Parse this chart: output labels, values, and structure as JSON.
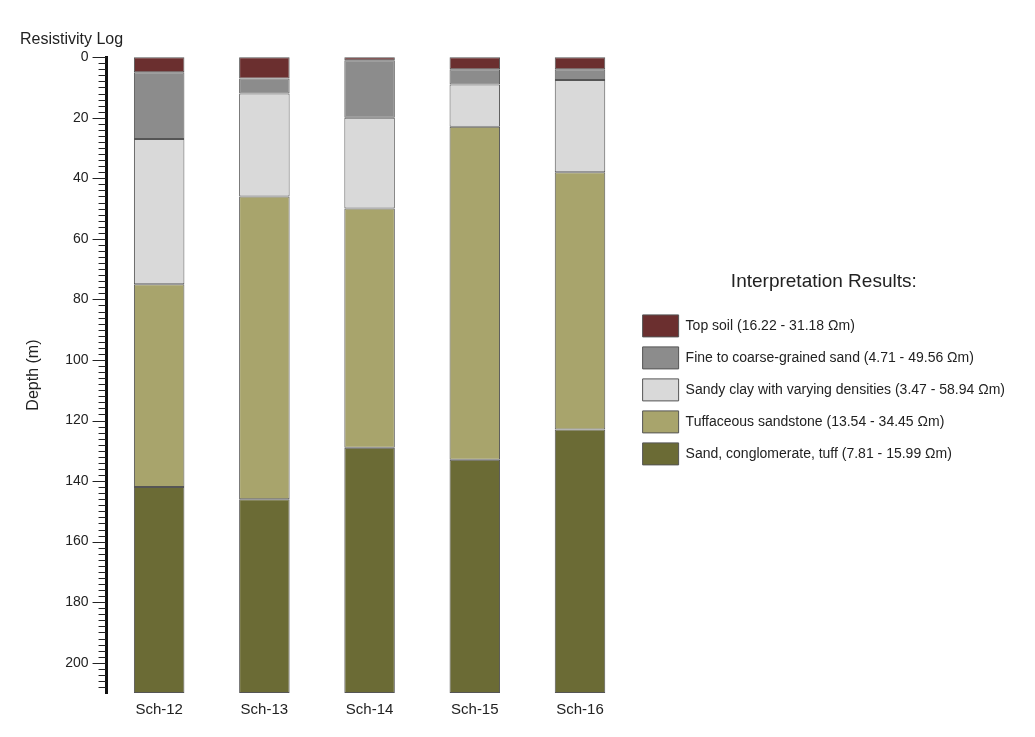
{
  "chart_data": {
    "type": "bar",
    "title": "Resistivity Log",
    "ylabel": "Depth (m)",
    "legend_title": "Interpretation Results:",
    "legend": "right",
    "stacked": true,
    "grid": false,
    "categories": [
      "Sch-12",
      "Sch-13",
      "Sch-14",
      "Sch-15",
      "Sch-16"
    ],
    "series": [
      {
        "name": "Top soil (16.22 - 31.18 Ωm)",
        "color": "#6b2f2f",
        "values": [
          5,
          7,
          1,
          4,
          4
        ]
      },
      {
        "name": "Fine to coarse-grained sand (4.71 - 49.56 Ωm)",
        "color": "#8c8c8c",
        "values": [
          22,
          5,
          19,
          5,
          3.5
        ]
      },
      {
        "name": "Sandy clay with varying densities (3.47 - 58.94 Ωm)",
        "color": "#d9d9d9",
        "values": [
          48,
          34,
          30,
          14,
          30.5
        ]
      },
      {
        "name": "Tuffaceous sandstone (13.54 - 34.45 Ωm)",
        "color": "#a8a46c",
        "values": [
          67,
          100,
          79,
          110,
          85
        ]
      },
      {
        "name": "Sand, conglomerate, tuff (7.81 - 15.99 Ωm)",
        "color": "#6b6b35",
        "values": [
          68,
          64,
          81,
          77,
          87
        ]
      }
    ],
    "ylim": [
      210,
      0
    ],
    "yticks": [
      0,
      {
        "value": 2,
        "label": null
      },
      {
        "value": 4,
        "label": null
      },
      {
        "value": 6,
        "label": null
      },
      {
        "value": 8,
        "label": null
      },
      {
        "value": 10,
        "label": null
      },
      {
        "value": 12,
        "label": null
      },
      {
        "value": 14,
        "label": null
      },
      {
        "value": 16,
        "label": null
      },
      {
        "value": 18,
        "label": null
      },
      20,
      {
        "value": 22,
        "label": null
      },
      {
        "value": 24,
        "label": null
      },
      {
        "value": 26,
        "label": null
      },
      {
        "value": 28,
        "label": null
      },
      {
        "value": 30,
        "label": null
      },
      {
        "value": 32,
        "label": null
      },
      {
        "value": 34,
        "label": null
      },
      {
        "value": 36,
        "label": null
      },
      {
        "value": 38,
        "label": null
      },
      40,
      {
        "value": 42,
        "label": null
      },
      {
        "value": 44,
        "label": null
      },
      {
        "value": 46,
        "label": null
      },
      {
        "value": 48,
        "label": null
      },
      {
        "value": 50,
        "label": null
      },
      {
        "value": 52,
        "label": null
      },
      {
        "value": 54,
        "label": null
      },
      {
        "value": 56,
        "label": null
      },
      {
        "value": 58,
        "label": null
      },
      60,
      {
        "value": 62,
        "label": null
      },
      {
        "value": 64,
        "label": null
      },
      {
        "value": 66,
        "label": null
      },
      {
        "value": 68,
        "label": null
      },
      {
        "value": 70,
        "label": null
      },
      {
        "value": 72,
        "label": null
      },
      {
        "value": 74,
        "label": null
      },
      {
        "value": 76,
        "label": null
      },
      {
        "value": 78,
        "label": null
      },
      80,
      {
        "value": 82,
        "label": null
      },
      {
        "value": 84,
        "label": null
      },
      {
        "value": 86,
        "label": null
      },
      {
        "value": 88,
        "label": null
      },
      {
        "value": 90,
        "label": null
      },
      {
        "value": 92,
        "label": null
      },
      {
        "value": 94,
        "label": null
      },
      {
        "value": 96,
        "label": null
      },
      {
        "value": 98,
        "label": null
      },
      100,
      {
        "value": 102,
        "label": null
      },
      {
        "value": 104,
        "label": null
      },
      {
        "value": 106,
        "label": null
      },
      {
        "value": 108,
        "label": null
      },
      {
        "value": 110,
        "label": null
      },
      {
        "value": 112,
        "label": null
      },
      {
        "value": 114,
        "label": null
      },
      {
        "value": 116,
        "label": null
      },
      {
        "value": 118,
        "label": null
      },
      120,
      {
        "value": 122,
        "label": null
      },
      {
        "value": 124,
        "label": null
      },
      {
        "value": 126,
        "label": null
      },
      {
        "value": 128,
        "label": null
      },
      {
        "value": 130,
        "label": null
      },
      {
        "value": 132,
        "label": null
      },
      {
        "value": 134,
        "label": null
      },
      {
        "value": 136,
        "label": null
      },
      {
        "value": 138,
        "label": null
      },
      140,
      {
        "value": 142,
        "label": null
      },
      {
        "value": 144,
        "label": null
      },
      {
        "value": 146,
        "label": null
      },
      {
        "value": 148,
        "label": null
      },
      {
        "value": 150,
        "label": null
      },
      {
        "value": 152,
        "label": null
      },
      {
        "value": 154,
        "label": null
      },
      {
        "value": 156,
        "label": null
      },
      {
        "value": 158,
        "label": null
      },
      160,
      {
        "value": 162,
        "label": null
      },
      {
        "value": 164,
        "label": null
      },
      {
        "value": 166,
        "label": null
      },
      {
        "value": 168,
        "label": null
      },
      {
        "value": 170,
        "label": null
      },
      {
        "value": 172,
        "label": null
      },
      {
        "value": 174,
        "label": null
      },
      {
        "value": 176,
        "label": null
      },
      {
        "value": 178,
        "label": null
      },
      180,
      {
        "value": 182,
        "label": null
      },
      {
        "value": 184,
        "label": null
      },
      {
        "value": 186,
        "label": null
      },
      {
        "value": 188,
        "label": null
      },
      {
        "value": 190,
        "label": null
      },
      {
        "value": 192,
        "label": null
      },
      {
        "value": 194,
        "label": null
      },
      {
        "value": 196,
        "label": null
      },
      {
        "value": 198,
        "label": null
      },
      200,
      {
        "value": 202,
        "label": null
      },
      {
        "value": 204,
        "label": null
      },
      {
        "value": 206,
        "label": null
      },
      {
        "value": 208,
        "label": null
      }
    ]
  }
}
